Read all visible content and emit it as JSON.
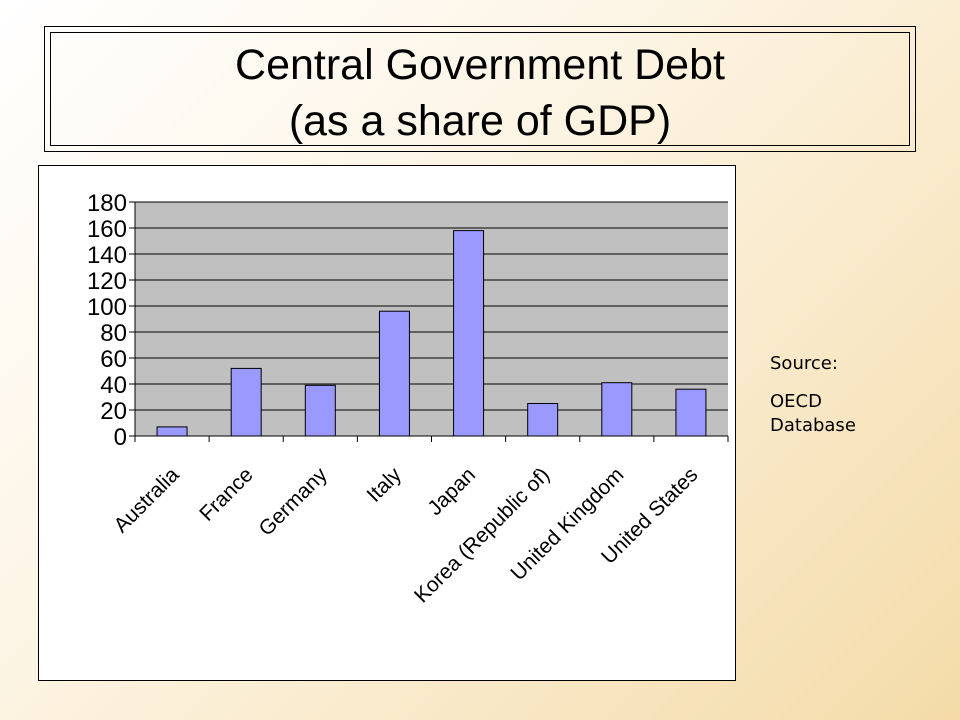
{
  "title": {
    "line1": "Central Government Debt",
    "line2": "(as a share of GDP)"
  },
  "source": {
    "label": "Source:",
    "text": "OECD Database"
  },
  "colors": {
    "bar": "#9999ff",
    "plot_area": "#c0c0c0",
    "gridline": "#000000"
  },
  "chart_data": {
    "type": "bar",
    "categories": [
      "Australia",
      "France",
      "Germany",
      "Italy",
      "Japan",
      "Korea (Republic of)",
      "United Kingdom",
      "United States"
    ],
    "values": [
      7,
      52,
      39,
      96,
      158,
      25,
      41,
      36
    ],
    "ylim": [
      0,
      180
    ],
    "yticks": [
      "0",
      "20",
      "40",
      "60",
      "80",
      "100",
      "120",
      "140",
      "160",
      "180"
    ],
    "grid": true,
    "legend": "none"
  }
}
